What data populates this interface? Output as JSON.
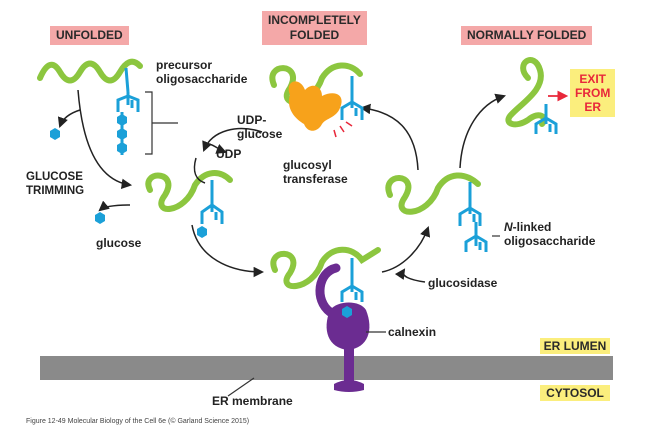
{
  "headers": {
    "unfolded": "UNFOLDED",
    "incompletely": "INCOMPLETELY\nFOLDED",
    "normally": "NORMALLY FOLDED"
  },
  "labels": {
    "precursor": "precursor\noligosaccharide",
    "udp_glucose": "UDP-\nglucose",
    "udp": "UDP",
    "glucosyl_transferase": "glucosyl\ntransferase",
    "glucose_trimming": "GLUCOSE\nTRIMMING",
    "glucose": "glucose",
    "n_linked_prefix": "N",
    "n_linked_rest": "-linked\noligosaccharide",
    "glucosidase": "glucosidase",
    "calnexin": "calnexin",
    "er_membrane": "ER membrane",
    "exit_from_er": "EXIT\nFROM\nER"
  },
  "compartments": {
    "er_lumen": "ER LUMEN",
    "cytosol": "CYTOSOL"
  },
  "caption": "Figure 12-49  Molecular Biology of the Cell 6e (© Garland Science 2015)",
  "colors": {
    "protein": "#8cc63f",
    "oligosaccharide": "#1ba0d8",
    "transferase": "#f7a21b",
    "calnexin": "#6b2c91",
    "membrane": "#8a8a8a",
    "header_bg": "#f4a8a8",
    "compartment_bg": "#fbee7d",
    "exit_text": "#e8273a",
    "arrow": "#222222"
  }
}
